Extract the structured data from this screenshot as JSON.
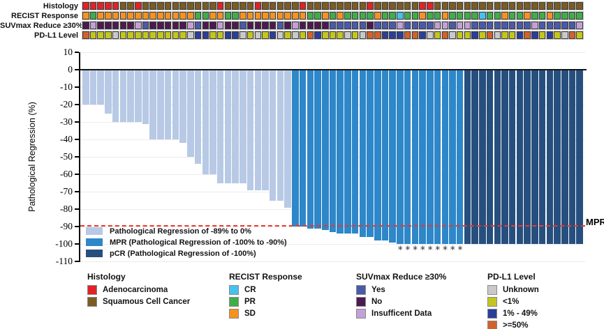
{
  "annotation_tracks": {
    "rows": [
      {
        "id": "histology",
        "label": "Histology",
        "codes": "RRRRRBBRBBBBBBBBBBRBBBBRBBBBBRBBBBBBBBRBBBBBBRRBBBBBBBBBBBBBBBBBBBB",
        "color_map": {
          "R": "#e32226",
          "B": "#7b5c22"
        }
      },
      {
        "id": "recist",
        "label": "RECIST Response",
        "codes": "OGOOOOOOOOOOOOOGGOOGGOOOOOOOOOGGOGOGGGGOGGCGGOGGOGGGGCGGOGGOGGOGGGG",
        "color_map": {
          "O": "#f6921e",
          "G": "#3fae49",
          "C": "#45c2f0"
        }
      },
      {
        "id": "suvmax",
        "label": "SUVmax Reduce ≥30%",
        "codes": "NINNNNNIYNNNNNIYNNINNYNNNNYNINNNNYYYYYNYYYIYYYYIIYIIYYYYYYYYIYYYYYI",
        "color_map": {
          "Y": "#4a5aab",
          "N": "#4c1a4e",
          "I": "#c3a0d8"
        }
      },
      {
        "id": "pdl1",
        "label": "PD-L1 Level",
        "codes": "HLLLULLLLLLLLLUMMLLMMULULMULULHMLLLULUHHMMMHHMULHULLMLHULLMHMLMLUHL",
        "color_map": {
          "U": "#c9c9c9",
          "L": "#c3c61d",
          "M": "#2b3e98",
          "H": "#d2622b"
        }
      }
    ]
  },
  "chart_data": {
    "type": "bar",
    "title": "",
    "ylabel": "Pathological Regression (%)",
    "ylim": [
      -110,
      10
    ],
    "yticks": [
      10,
      0,
      -10,
      -20,
      -30,
      -40,
      -50,
      -60,
      -70,
      -80,
      -90,
      -100,
      -110
    ],
    "grid": true,
    "values": [
      -20,
      -20,
      -20,
      -25,
      -30,
      -30,
      -30,
      -30,
      -31,
      -40,
      -40,
      -40,
      -40,
      -42,
      -50,
      -54,
      -60,
      -60,
      -65,
      -65,
      -65,
      -65,
      -69,
      -69,
      -69,
      -75,
      -75,
      -79,
      -90,
      -90,
      -91,
      -91,
      -92,
      -93,
      -94,
      -94,
      -94,
      -96,
      -96,
      -98,
      -98,
      -99,
      -100,
      -100,
      -100,
      -100,
      -100,
      -100,
      -100,
      -100,
      -100,
      -100,
      -100,
      -100,
      -100,
      -100,
      -100,
      -100,
      -100,
      -100,
      -100,
      -100,
      -100,
      -100,
      -100,
      -100,
      -100
    ],
    "groups": {
      "mpr_start": 28,
      "pcr_start": 51
    },
    "colors": {
      "light": "#b7c9e5",
      "mpr": "#2d87c9",
      "pcr": "#274f7e"
    },
    "asterisk_indices": [
      42,
      43,
      44,
      45,
      46,
      47,
      48,
      49,
      50
    ],
    "asterisk_symbol": "*",
    "mpr_line": {
      "value": -90,
      "label": "MPR",
      "style": "dashed",
      "color": "#e8392e"
    },
    "legend_position": "inside-bottom-left",
    "legend": [
      {
        "label": "Pathological Regression of -89% to 0%",
        "color": "#b7c9e5"
      },
      {
        "label": "MPR (Pathological Regression of -100% to -90%)",
        "color": "#2d87c9"
      },
      {
        "label": "pCR (Pathological Regression of -100%)",
        "color": "#274f7e"
      }
    ]
  },
  "bottom_legends": [
    {
      "id": "histology",
      "title": "Histology",
      "items": [
        {
          "label": "Adenocarcinoma",
          "color": "#e32226"
        },
        {
          "label": "Squamous Cell Cancer",
          "color": "#7b5c22"
        }
      ]
    },
    {
      "id": "recist",
      "title": "RECIST Response",
      "items": [
        {
          "label": "CR",
          "color": "#45c2f0"
        },
        {
          "label": "PR",
          "color": "#3fae49"
        },
        {
          "label": "SD",
          "color": "#f6921e"
        }
      ]
    },
    {
      "id": "suvmax",
      "title": "SUVmax Reduce ≥30%",
      "items": [
        {
          "label": "Yes",
          "color": "#4a5aab"
        },
        {
          "label": "No",
          "color": "#4c1a4e"
        },
        {
          "label": "Insufficent Data",
          "color": "#c3a0d8"
        }
      ]
    },
    {
      "id": "pdl1",
      "title": "PD-L1 Level",
      "items": [
        {
          "label": "Unknown",
          "color": "#c9c9c9"
        },
        {
          "label": "<1%",
          "color": "#c3c61d"
        },
        {
          "label": "1% - 49%",
          "color": "#2b3e98"
        },
        {
          "label": ">=50%",
          "color": "#d2622b"
        }
      ]
    }
  ]
}
